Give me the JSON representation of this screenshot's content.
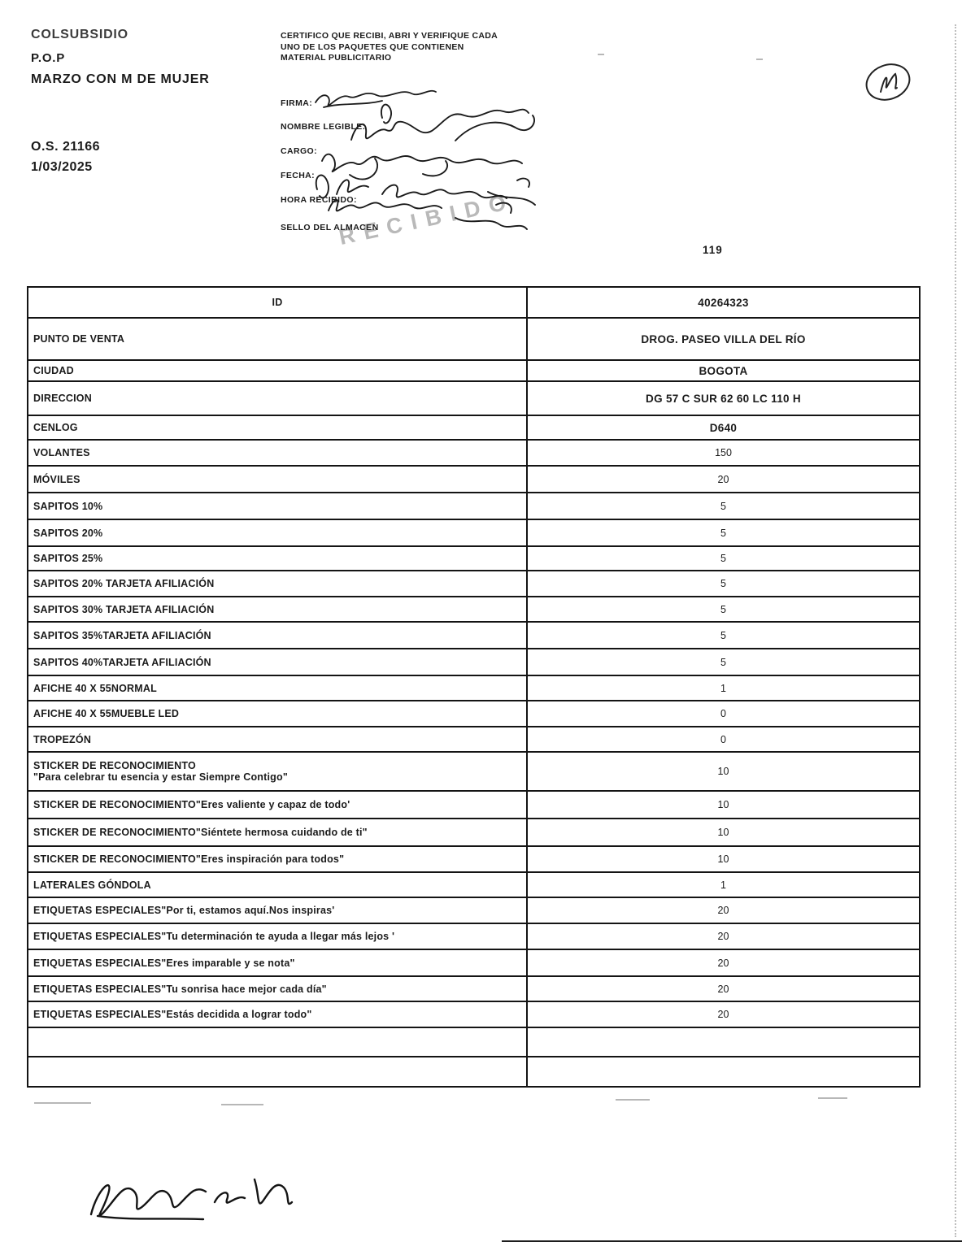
{
  "header": {
    "brand_line1": "COLSUBSIDIO",
    "brand_line2": "P.O.P",
    "brand_line3": "MARZO CON M DE MUJER",
    "order_number": "O.S. 21166",
    "order_date": "1/03/2025",
    "certification_text": "CERTIFICO QUE RECIBI, ABRI Y VERIFIQUE CADA  UNO DE LOS PAQUETES QUE CONTIENEN MATERIAL PUBLICITARIO",
    "fields": [
      "FIRMA:",
      "NOMBRE LEGIBLE:",
      "CARGO:",
      "FECHA:",
      "HORA RECIBIDO:",
      "SELLO DEL ALMACEN"
    ],
    "stamp_text": "RECIBIDO",
    "page_number": "119"
  },
  "table": {
    "rows": [
      {
        "label": "ID",
        "value": "40264323"
      },
      {
        "label": "PUNTO DE VENTA",
        "value": "DROG. PASEO VILLA DEL RÍO"
      },
      {
        "label": "CIUDAD",
        "value": "BOGOTA"
      },
      {
        "label": "DIRECCION",
        "value": "DG 57 C SUR 62 60 LC 110 H"
      },
      {
        "label": "CENLOG",
        "value": "D640"
      },
      {
        "label": "VOLANTES",
        "value": "150"
      },
      {
        "label": "MÓVILES",
        "value": "20"
      },
      {
        "label": "SAPITOS 10%",
        "value": "5"
      },
      {
        "label": "SAPITOS 20%",
        "value": "5"
      },
      {
        "label": "SAPITOS 25%",
        "value": "5"
      },
      {
        "label": "SAPITOS 20% TARJETA AFILIACIÓN",
        "value": "5"
      },
      {
        "label": "SAPITOS 30% TARJETA AFILIACIÓN",
        "value": "5"
      },
      {
        "label": "SAPITOS 35%TARJETA AFILIACIÓN",
        "value": "5"
      },
      {
        "label": "SAPITOS 40%TARJETA AFILIACIÓN",
        "value": "5"
      },
      {
        "label": "AFICHE 40 X 55NORMAL",
        "value": "1"
      },
      {
        "label": "AFICHE 40 X 55MUEBLE LED",
        "value": "0"
      },
      {
        "label": "TROPEZÓN",
        "value": "0"
      },
      {
        "label": "STICKER DE RECONOCIMIENTO\n\"Para celebrar tu esencia y estar Siempre Contigo\"",
        "value": "10"
      },
      {
        "label": "STICKER DE RECONOCIMIENTO\"Eres valiente y capaz de todo'",
        "value": "10"
      },
      {
        "label": "STICKER DE RECONOCIMIENTO\"Siéntete hermosa cuidando de ti\"",
        "value": "10"
      },
      {
        "label": "STICKER DE RECONOCIMIENTO\"Eres inspiración para todos\"",
        "value": "10"
      },
      {
        "label": "LATERALES GÓNDOLA",
        "value": "1"
      },
      {
        "label": "ETIQUETAS ESPECIALES\"Por ti, estamos aquí.Nos inspiras'",
        "value": "20"
      },
      {
        "label": "ETIQUETAS ESPECIALES\"Tu determinación te ayuda a llegar más lejos '",
        "value": "20"
      },
      {
        "label": "ETIQUETAS ESPECIALES\"Eres imparable y se nota\"",
        "value": "20"
      },
      {
        "label": "ETIQUETAS ESPECIALES\"Tu sonrisa hace mejor cada día\"",
        "value": "20"
      },
      {
        "label": "ETIQUETAS ESPECIALES\"Estás decidida a lograr todo\"",
        "value": "20"
      },
      {
        "label": "",
        "value": ""
      },
      {
        "label": "",
        "value": ""
      }
    ]
  },
  "colors": {
    "ink": "#1b1b1b",
    "stamp_gray": "#464646"
  }
}
